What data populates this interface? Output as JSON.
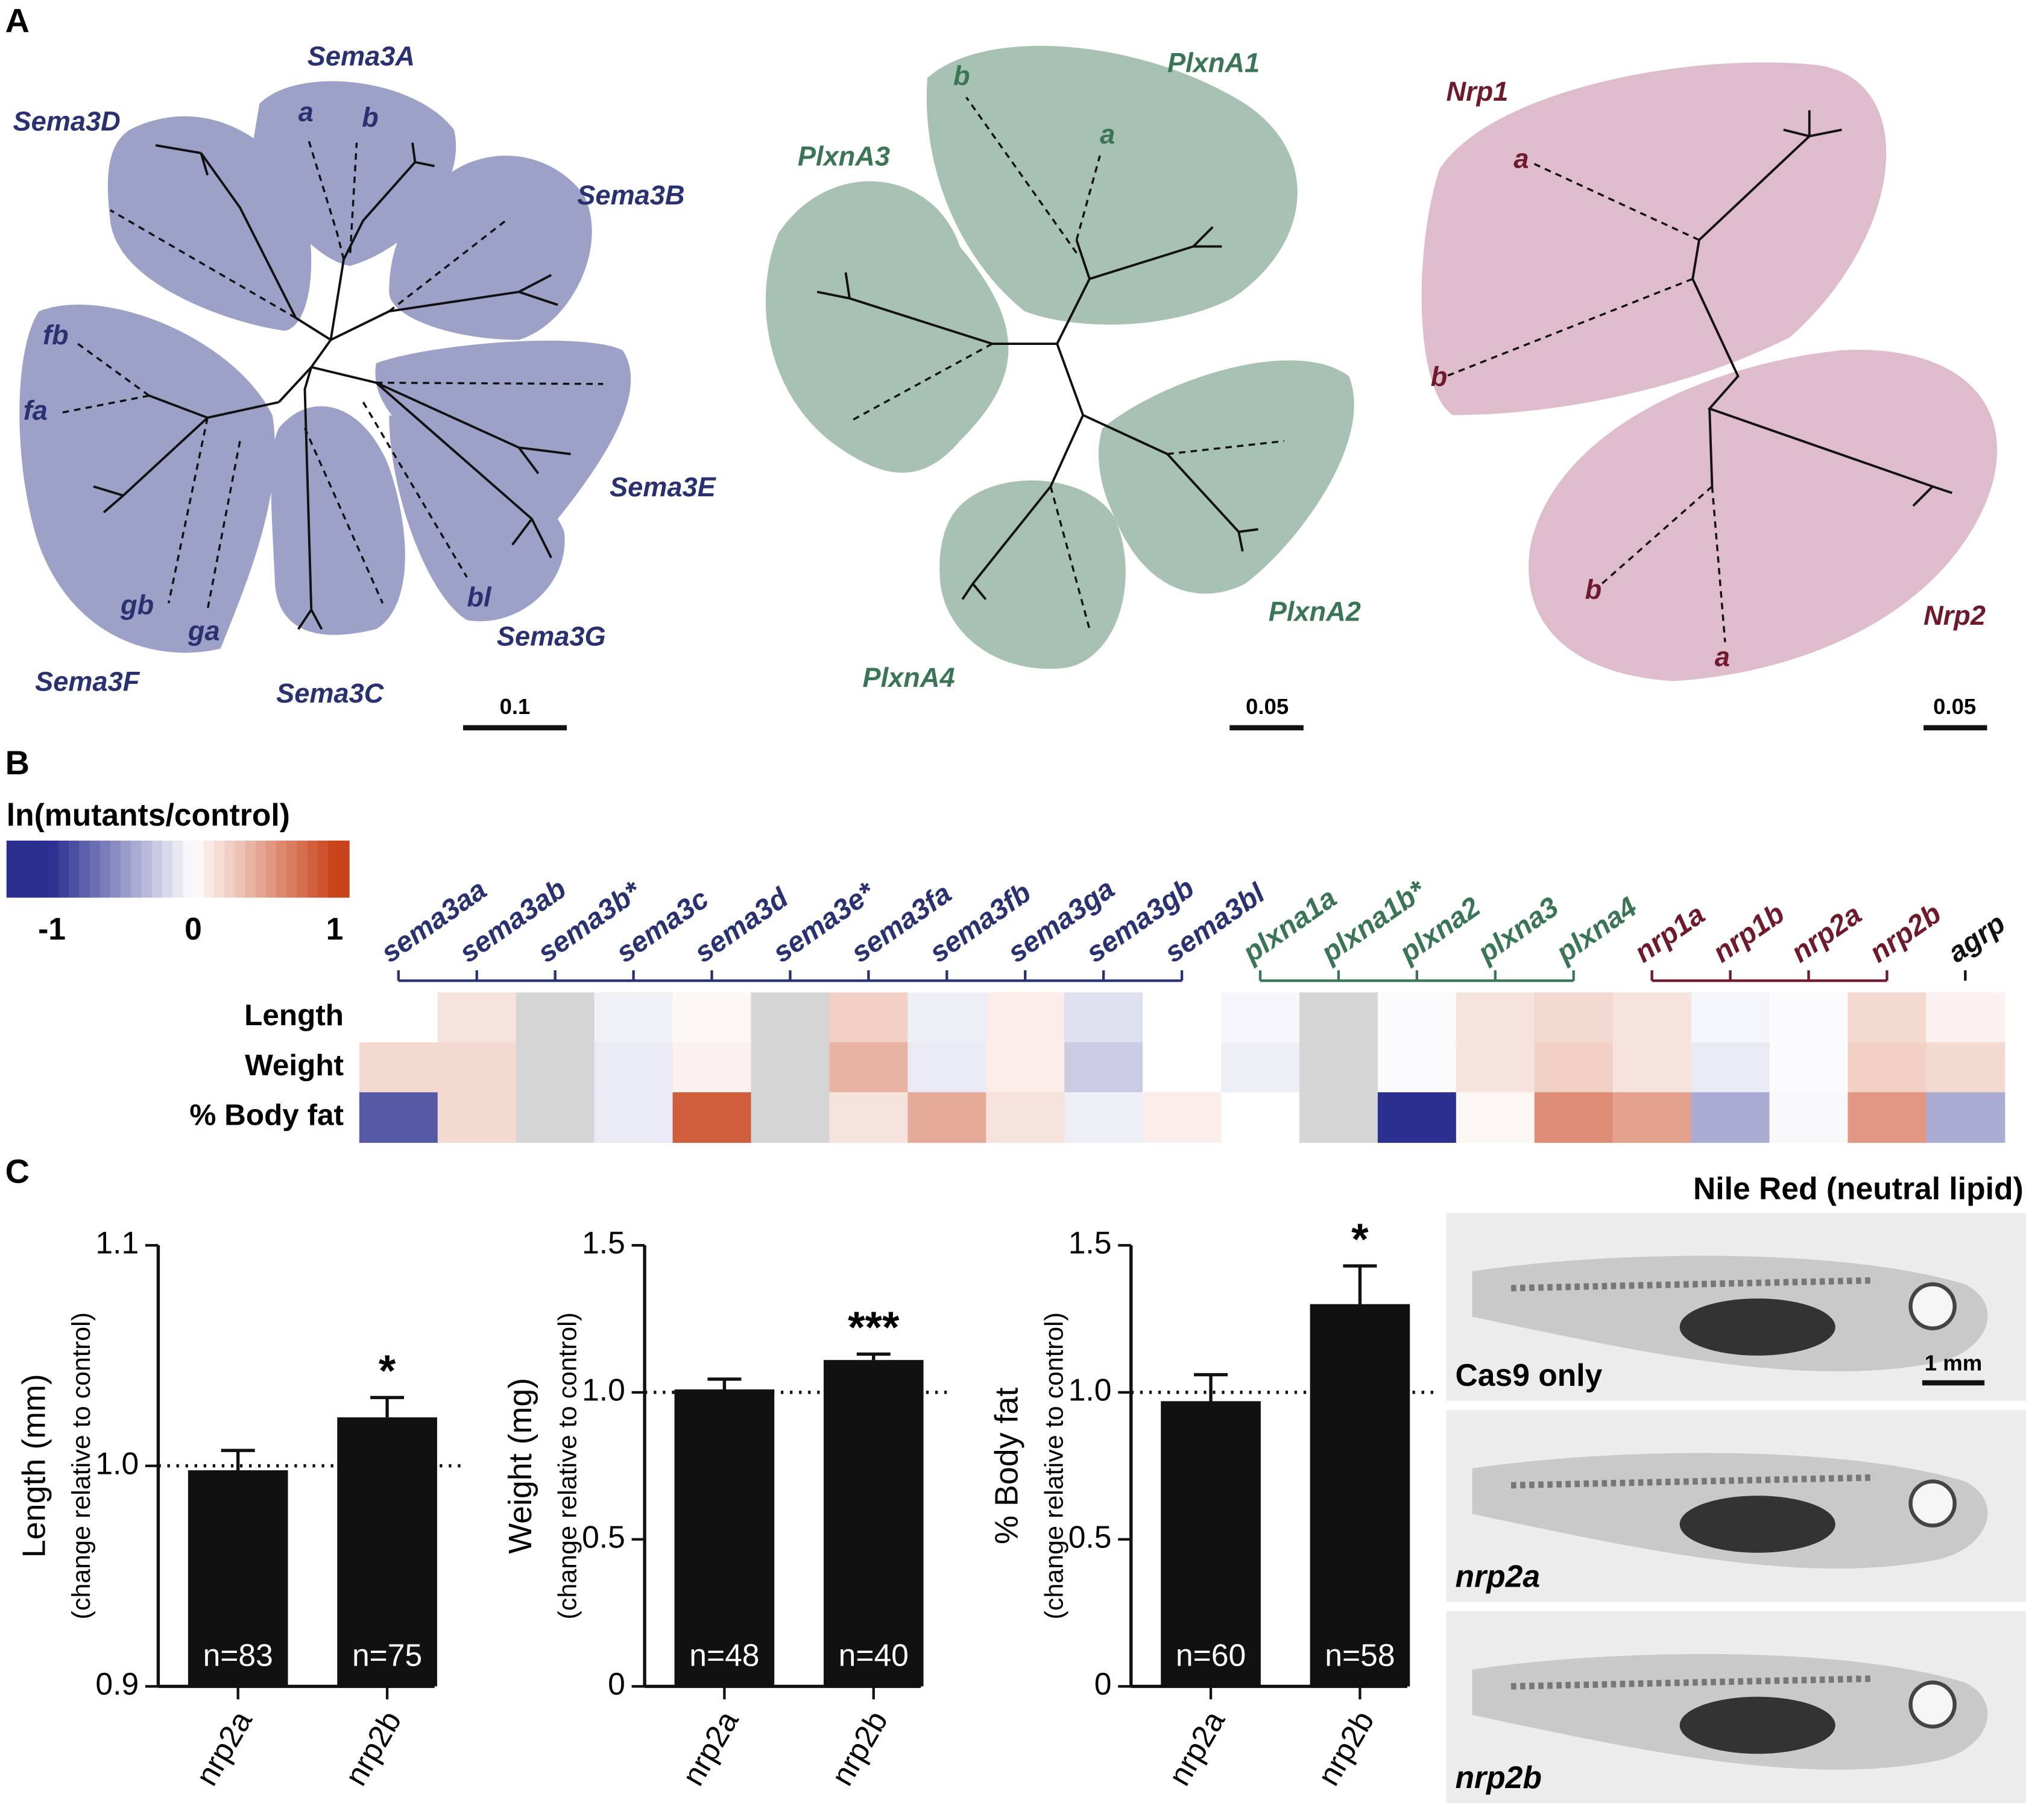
{
  "panel_labels": [
    "A",
    "B",
    "C"
  ],
  "trees": [
    {
      "color": "#9ea1c7",
      "label_color": "#2a3170",
      "scale_label": "0.1",
      "labels": [
        "Sema3A",
        "a",
        "b",
        "Sema3D",
        "Sema3B",
        "fb",
        "fa",
        "Sema3E",
        "gb",
        "ga",
        "bl",
        "Sema3G",
        "Sema3F",
        "Sema3C"
      ]
    },
    {
      "color": "#a7c1b3",
      "label_color": "#3a7656",
      "scale_label": "0.05",
      "labels": [
        "PlxnA1",
        "b",
        "a",
        "PlxnA3",
        "PlxnA2",
        "PlxnA4"
      ]
    },
    {
      "color": "#dfbccb",
      "label_color": "#6e1a2c",
      "scale_label": "0.05",
      "labels": [
        "Nrp1",
        "a",
        "b",
        "b",
        "Nrp2",
        "a"
      ]
    }
  ],
  "chart_data": [
    {
      "type": "heatmap",
      "colorbar_title": "ln(mutants/control)",
      "zlim": [
        -1,
        1
      ],
      "zticks": [
        -1,
        0,
        1
      ],
      "colorscale": [
        "#2b2f90",
        "#ffffff",
        "#c8421a"
      ],
      "missing_color": "#d5d5d5",
      "categories": [
        "sema3aa",
        "sema3ab",
        "sema3b*",
        "sema3c",
        "sema3d",
        "sema3e*",
        "sema3fa",
        "sema3fb",
        "sema3ga",
        "sema3gb",
        "sema3bl",
        "plxna1a",
        "plxna1b*",
        "plxna2",
        "plxna3",
        "plxna4",
        "nrp1a",
        "nrp1b",
        "nrp2a",
        "nrp2b",
        "agrp"
      ],
      "category_colors": [
        "#2a3170",
        "#2a3170",
        "#2a3170",
        "#2a3170",
        "#2a3170",
        "#2a3170",
        "#2a3170",
        "#2a3170",
        "#2a3170",
        "#2a3170",
        "#2a3170",
        "#3a7656",
        "#3a7656",
        "#3a7656",
        "#3a7656",
        "#3a7656",
        "#6e1a2c",
        "#6e1a2c",
        "#6e1a2c",
        "#6e1a2c",
        "#111111"
      ],
      "rows": [
        "Length",
        "Weight",
        "% Body fat"
      ],
      "values": [
        [
          0,
          0.15,
          null,
          -0.07,
          0.05,
          null,
          0.25,
          -0.08,
          0.1,
          -0.15,
          0,
          -0.04,
          null,
          -0.02,
          0.15,
          0.2,
          0.15,
          -0.05,
          -0.02,
          0.2,
          0.07
        ],
        [
          0.2,
          0.2,
          null,
          -0.1,
          0.07,
          null,
          0.4,
          -0.1,
          0.1,
          -0.25,
          0,
          -0.08,
          null,
          -0.02,
          0.15,
          0.25,
          0.15,
          -0.1,
          -0.02,
          0.25,
          0.2
        ],
        [
          -0.8,
          0.2,
          null,
          -0.1,
          0.85,
          null,
          0.15,
          0.45,
          0.15,
          -0.08,
          0.1,
          0,
          null,
          -1,
          0.05,
          0.6,
          0.5,
          -0.4,
          -0.03,
          0.55,
          -0.4
        ]
      ]
    },
    {
      "type": "bar",
      "y_label": "Length (mm)",
      "y_sublabel": "(change relative to control)",
      "color": "#111111",
      "categories": [
        "nrp2a",
        "nrp2b"
      ],
      "values": [
        0.998,
        1.022
      ],
      "errors": [
        0.009,
        0.009
      ],
      "n_labels": [
        "n=83",
        "n=75"
      ],
      "significance": [
        null,
        "*"
      ],
      "reference_line": 1,
      "ylim": [
        0.9,
        1.1
      ],
      "yticks": [
        0.9,
        {
          "value": 1.0,
          "label": "1.0"
        },
        1.1
      ]
    },
    {
      "type": "bar",
      "y_label": "Weight (mg)",
      "y_sublabel": "(change relative to control)",
      "color": "#111111",
      "categories": [
        "nrp2a",
        "nrp2b"
      ],
      "values": [
        1.01,
        1.11
      ],
      "errors": [
        0.035,
        0.02
      ],
      "n_labels": [
        "n=48",
        "n=40"
      ],
      "significance": [
        null,
        "***"
      ],
      "reference_line": 1,
      "ylim": [
        0,
        1.5
      ],
      "yticks": [
        0,
        0.5,
        {
          "value": 1.0,
          "label": "1.0"
        },
        1.5
      ]
    },
    {
      "type": "bar",
      "y_label": "% Body fat",
      "y_sublabel": "(change relative to control)",
      "color": "#111111",
      "categories": [
        "nrp2a",
        "nrp2b"
      ],
      "values": [
        0.97,
        1.3
      ],
      "errors": [
        0.09,
        0.13
      ],
      "n_labels": [
        "n=60",
        "n=58"
      ],
      "significance": [
        null,
        "*"
      ],
      "reference_line": 1,
      "ylim": [
        0,
        1.5
      ],
      "yticks": [
        0,
        0.5,
        {
          "value": 1.0,
          "label": "1.0"
        },
        1.5
      ]
    }
  ],
  "images": {
    "title": "Nile Red (neutral lipid)",
    "labels": [
      "Cas9 only",
      "nrp2a",
      "nrp2b"
    ],
    "scale_label": "1 mm"
  }
}
